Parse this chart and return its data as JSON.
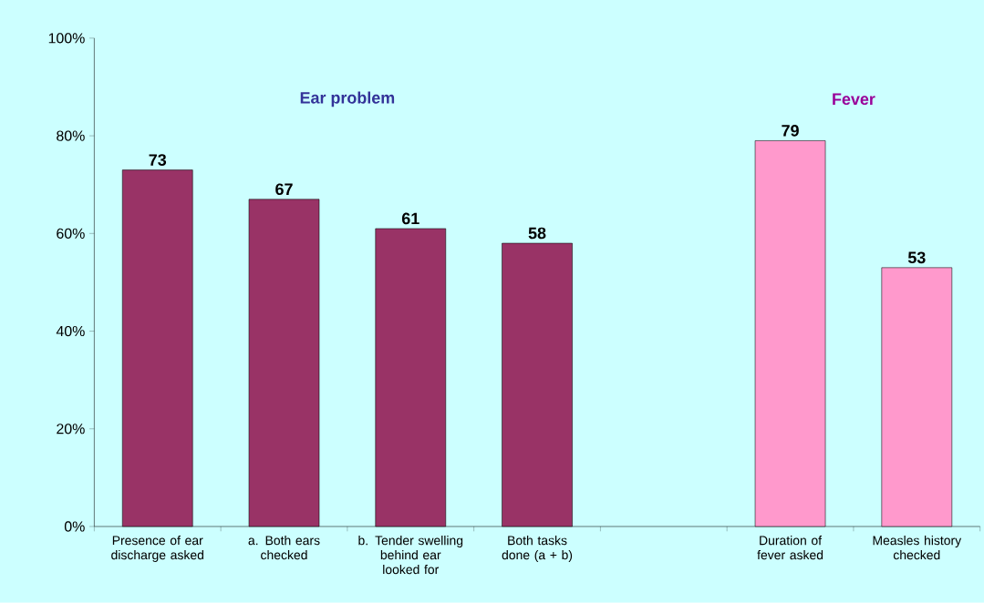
{
  "chart_data": {
    "type": "bar",
    "categories": [
      "Presence of ear discharge asked",
      "a. Both ears checked",
      "b. Tender swelling behind ear looked for",
      "Both tasks done (a + b)",
      null,
      "Duration of fever asked",
      "Measles history checked"
    ],
    "values": [
      73,
      67,
      61,
      58,
      null,
      79,
      53
    ],
    "colors": [
      "#993366",
      "#993366",
      "#993366",
      "#993366",
      "#993366",
      "#ff99cc",
      "#ff99cc"
    ],
    "ylim": [
      0,
      100
    ],
    "yticks": [
      {
        "value": 0,
        "label": "0%"
      },
      {
        "value": 20,
        "label": "20%"
      },
      {
        "value": 40,
        "label": "40%"
      },
      {
        "value": 60,
        "label": "60%"
      },
      {
        "value": 80,
        "label": "80%"
      },
      {
        "value": 100,
        "label": "100%"
      }
    ],
    "annotations": [
      "Ear problem",
      "Fever"
    ],
    "data_labels": true,
    "grid": false
  }
}
